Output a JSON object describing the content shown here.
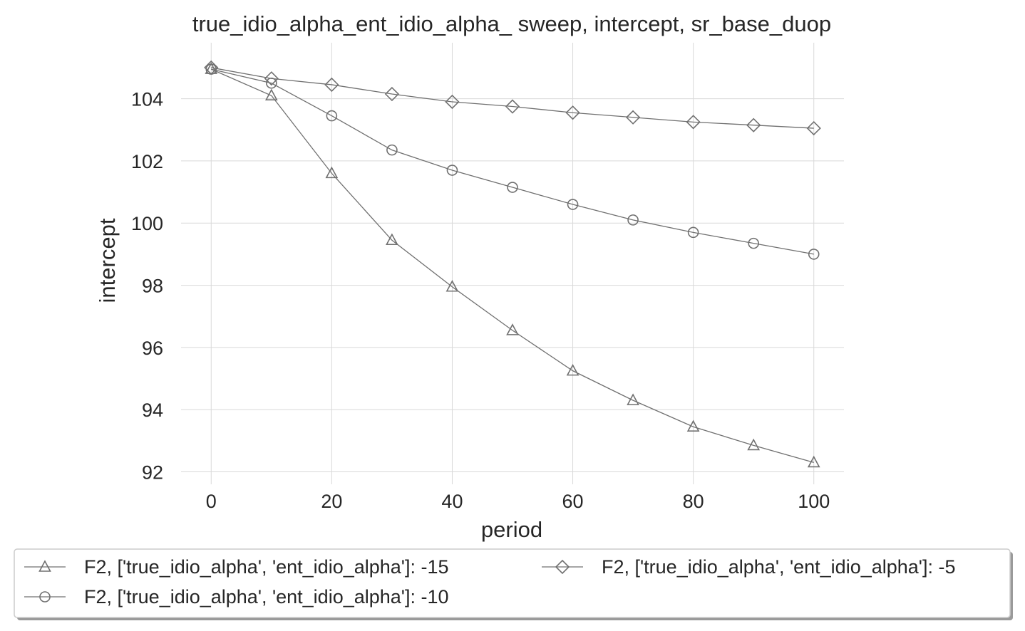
{
  "chart_data": {
    "type": "line",
    "title": "true_idio_alpha_ent_idio_alpha_ sweep, intercept, sr_base_duop",
    "xlabel": "period",
    "ylabel": "intercept",
    "xlim": [
      -5,
      105
    ],
    "ylim": [
      91.6,
      105.8
    ],
    "xticks": [
      0,
      20,
      40,
      60,
      80,
      100
    ],
    "yticks": [
      92,
      94,
      96,
      98,
      100,
      102,
      104
    ],
    "grid": true,
    "legend_position": "below",
    "line_color": "#707070",
    "x": [
      0,
      10,
      20,
      30,
      40,
      50,
      60,
      70,
      80,
      90,
      100
    ],
    "series": [
      {
        "name": "F2, ['true_idio_alpha', 'ent_idio_alpha']: -15",
        "marker": "triangle",
        "values": [
          104.95,
          104.1,
          101.6,
          99.45,
          97.95,
          96.55,
          95.25,
          94.3,
          93.45,
          92.85,
          92.3
        ]
      },
      {
        "name": "F2, ['true_idio_alpha', 'ent_idio_alpha']: -10",
        "marker": "circle",
        "values": [
          104.95,
          104.5,
          103.45,
          102.35,
          101.7,
          101.15,
          100.6,
          100.1,
          99.7,
          99.35,
          99.0
        ]
      },
      {
        "name": "F2, ['true_idio_alpha', 'ent_idio_alpha']: -5",
        "marker": "diamond",
        "values": [
          105.0,
          104.65,
          104.45,
          104.15,
          103.9,
          103.75,
          103.55,
          103.4,
          103.25,
          103.15,
          103.05
        ]
      }
    ]
  }
}
